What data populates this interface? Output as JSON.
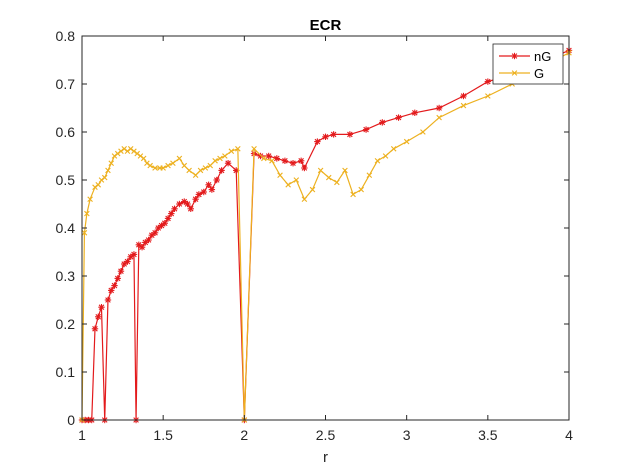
{
  "chart_data": {
    "type": "line",
    "title": "ECR",
    "xlabel": "r",
    "ylabel": "",
    "xlim": [
      1,
      4
    ],
    "ylim": [
      0,
      0.8
    ],
    "xticks": [
      1,
      1.5,
      2,
      2.5,
      3,
      3.5,
      4
    ],
    "xtick_labels": [
      "1",
      "1.5",
      "2",
      "2.5",
      "3",
      "3.5",
      "4"
    ],
    "yticks": [
      0,
      0.1,
      0.2,
      0.3,
      0.4,
      0.5,
      0.6,
      0.7,
      0.8
    ],
    "ytick_labels": [
      "0",
      "0.1",
      "0.2",
      "0.3",
      "0.4",
      "0.5",
      "0.6",
      "0.7",
      "0.8"
    ],
    "grid": false,
    "legend_position": "top-right",
    "series": [
      {
        "name": "nG",
        "color": "#e31a1c",
        "marker": "asterisk",
        "x": [
          1.0,
          1.02,
          1.04,
          1.06,
          1.08,
          1.1,
          1.12,
          1.14,
          1.16,
          1.18,
          1.2,
          1.22,
          1.24,
          1.26,
          1.28,
          1.3,
          1.32,
          1.333,
          1.35,
          1.37,
          1.39,
          1.41,
          1.43,
          1.45,
          1.47,
          1.49,
          1.51,
          1.53,
          1.55,
          1.57,
          1.6,
          1.63,
          1.65,
          1.67,
          1.7,
          1.72,
          1.75,
          1.78,
          1.8,
          1.83,
          1.86,
          1.9,
          1.95,
          2.0,
          2.06,
          2.1,
          2.15,
          2.2,
          2.25,
          2.3,
          2.35,
          2.37,
          2.45,
          2.5,
          2.55,
          2.65,
          2.75,
          2.85,
          2.95,
          3.05,
          3.2,
          3.35,
          3.5,
          3.65,
          4.0
        ],
        "y": [
          0.0,
          0.0,
          0.0,
          0.0,
          0.19,
          0.215,
          0.235,
          0.0,
          0.25,
          0.27,
          0.28,
          0.295,
          0.31,
          0.325,
          0.33,
          0.34,
          0.345,
          0.0,
          0.365,
          0.36,
          0.37,
          0.375,
          0.385,
          0.39,
          0.4,
          0.405,
          0.41,
          0.42,
          0.43,
          0.44,
          0.45,
          0.455,
          0.45,
          0.44,
          0.46,
          0.47,
          0.475,
          0.49,
          0.48,
          0.5,
          0.52,
          0.535,
          0.52,
          0.0,
          0.555,
          0.55,
          0.55,
          0.545,
          0.54,
          0.535,
          0.54,
          0.525,
          0.58,
          0.59,
          0.595,
          0.595,
          0.605,
          0.62,
          0.63,
          0.64,
          0.65,
          0.675,
          0.705,
          0.72,
          0.77
        ]
      },
      {
        "name": "G",
        "color": "#edb120",
        "marker": "x",
        "x": [
          1.0,
          1.015,
          1.03,
          1.05,
          1.08,
          1.1,
          1.12,
          1.14,
          1.16,
          1.18,
          1.2,
          1.22,
          1.24,
          1.26,
          1.28,
          1.3,
          1.32,
          1.34,
          1.36,
          1.38,
          1.4,
          1.42,
          1.45,
          1.48,
          1.5,
          1.53,
          1.56,
          1.6,
          1.63,
          1.66,
          1.7,
          1.73,
          1.76,
          1.79,
          1.82,
          1.85,
          1.88,
          1.92,
          1.96,
          2.0,
          2.06,
          2.12,
          2.17,
          2.22,
          2.27,
          2.32,
          2.37,
          2.42,
          2.47,
          2.52,
          2.57,
          2.62,
          2.67,
          2.72,
          2.77,
          2.82,
          2.87,
          2.92,
          3.0,
          3.1,
          3.2,
          3.35,
          3.5,
          3.65,
          3.8,
          4.0
        ],
        "y": [
          0.0,
          0.39,
          0.43,
          0.46,
          0.485,
          0.49,
          0.5,
          0.505,
          0.52,
          0.535,
          0.55,
          0.555,
          0.56,
          0.565,
          0.56,
          0.565,
          0.56,
          0.555,
          0.55,
          0.545,
          0.535,
          0.53,
          0.525,
          0.525,
          0.525,
          0.53,
          0.535,
          0.545,
          0.53,
          0.52,
          0.51,
          0.52,
          0.525,
          0.53,
          0.54,
          0.545,
          0.55,
          0.56,
          0.565,
          0.0,
          0.565,
          0.545,
          0.54,
          0.51,
          0.49,
          0.5,
          0.46,
          0.48,
          0.52,
          0.505,
          0.495,
          0.52,
          0.47,
          0.48,
          0.51,
          0.54,
          0.55,
          0.565,
          0.58,
          0.6,
          0.63,
          0.655,
          0.675,
          0.7,
          0.73,
          0.765
        ]
      }
    ]
  }
}
